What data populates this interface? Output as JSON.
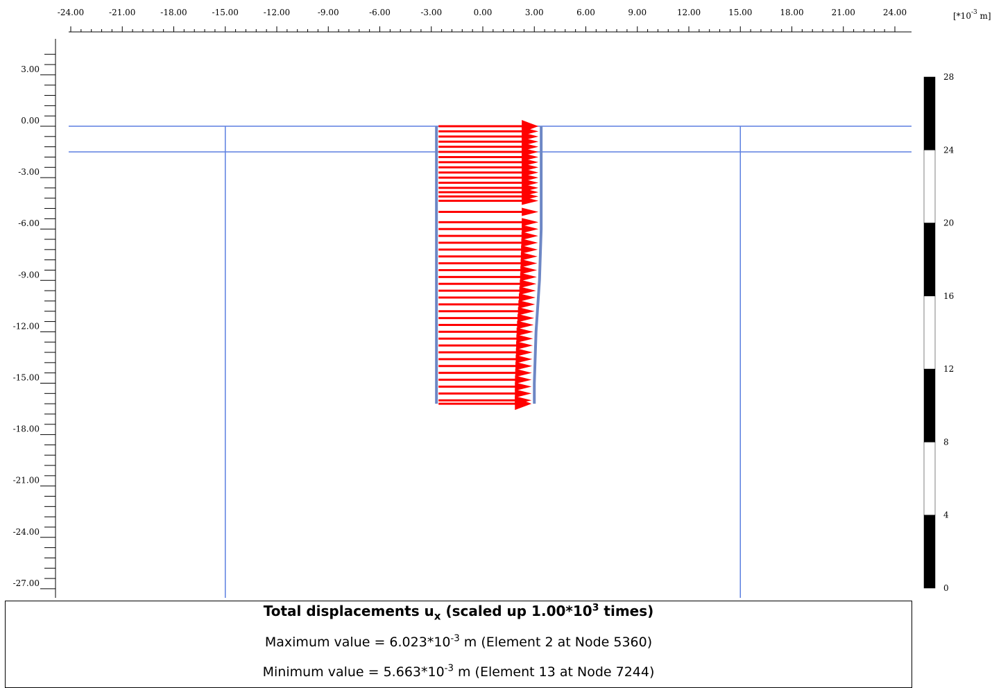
{
  "x_axis": {
    "tick_labels": [
      "-24.00",
      "-21.00",
      "-18.00",
      "-15.00",
      "-12.00",
      "-9.00",
      "-6.00",
      "-3.00",
      "0.00",
      "3.00",
      "6.00",
      "9.00",
      "12.00",
      "15.00",
      "18.00",
      "21.00",
      "24.00"
    ],
    "min": -24,
    "max": 24,
    "major_step": 3,
    "minor_step": 0.6
  },
  "y_axis": {
    "tick_labels": [
      "3.00",
      "0.00",
      "-3.00",
      "-6.00",
      "-9.00",
      "-12.00",
      "-15.00",
      "-18.00",
      "-21.00",
      "-24.00",
      "-27.00"
    ],
    "min": -27,
    "max": 3,
    "major_step": 3,
    "minor_step": 0.6
  },
  "unit_label": {
    "prefix": "[*10",
    "exponent": "-3",
    "suffix": " m]"
  },
  "legend": {
    "tick_labels": [
      "28",
      "24",
      "20",
      "16",
      "12",
      "8",
      "4",
      "0"
    ],
    "min": 0,
    "max": 28,
    "step": 4,
    "band_colors": [
      "#000000",
      "#ffffff"
    ]
  },
  "model": {
    "ground_lines_y": [
      0,
      -1.5
    ],
    "vertical_lines_x": [
      -15,
      15
    ],
    "wall_x": -2.7,
    "wall_top_y": 0,
    "wall_bottom_y": -16.2,
    "line_color": "#5b7fe0",
    "wall_color": "#6d87c5",
    "arrow_color": "#ff0000",
    "displaced_shape_x": [
      3.4,
      3.4,
      3.4,
      3.3,
      3.1,
      3.0,
      3.0
    ],
    "displaced_shape_y": [
      0,
      -3,
      -6,
      -9,
      -12,
      -15,
      -16.2
    ],
    "arrow_rows_y": [
      0,
      -0.3,
      -0.6,
      -0.9,
      -1.2,
      -1.5,
      -1.8,
      -2.1,
      -2.4,
      -2.7,
      -3.0,
      -3.3,
      -3.6,
      -3.85,
      -4.1,
      -4.35,
      -5.0,
      -5.6,
      -6.0,
      -6.4,
      -6.8,
      -7.2,
      -7.6,
      -8.0,
      -8.4,
      -8.8,
      -9.2,
      -9.6,
      -10.0,
      -10.4,
      -10.8,
      -11.2,
      -11.6,
      -12.0,
      -12.4,
      -12.8,
      -13.2,
      -13.6,
      -14.0,
      -14.4,
      -14.8,
      -15.2,
      -15.6,
      -16.0,
      -16.2
    ]
  },
  "info": {
    "title_main": "Total displacements u",
    "title_sub": "x",
    "title_mid": " (scaled up 1.00*10",
    "title_exp": "3",
    "title_end": " times)",
    "max_prefix": "Maximum value = 6.023*10",
    "max_exp": "-3",
    "max_suffix": " m (Element 2 at Node 5360)",
    "min_prefix": "Minimum value = 5.663*10",
    "min_exp": "-3",
    "min_suffix": " m (Element 13 at Node 7244)"
  }
}
